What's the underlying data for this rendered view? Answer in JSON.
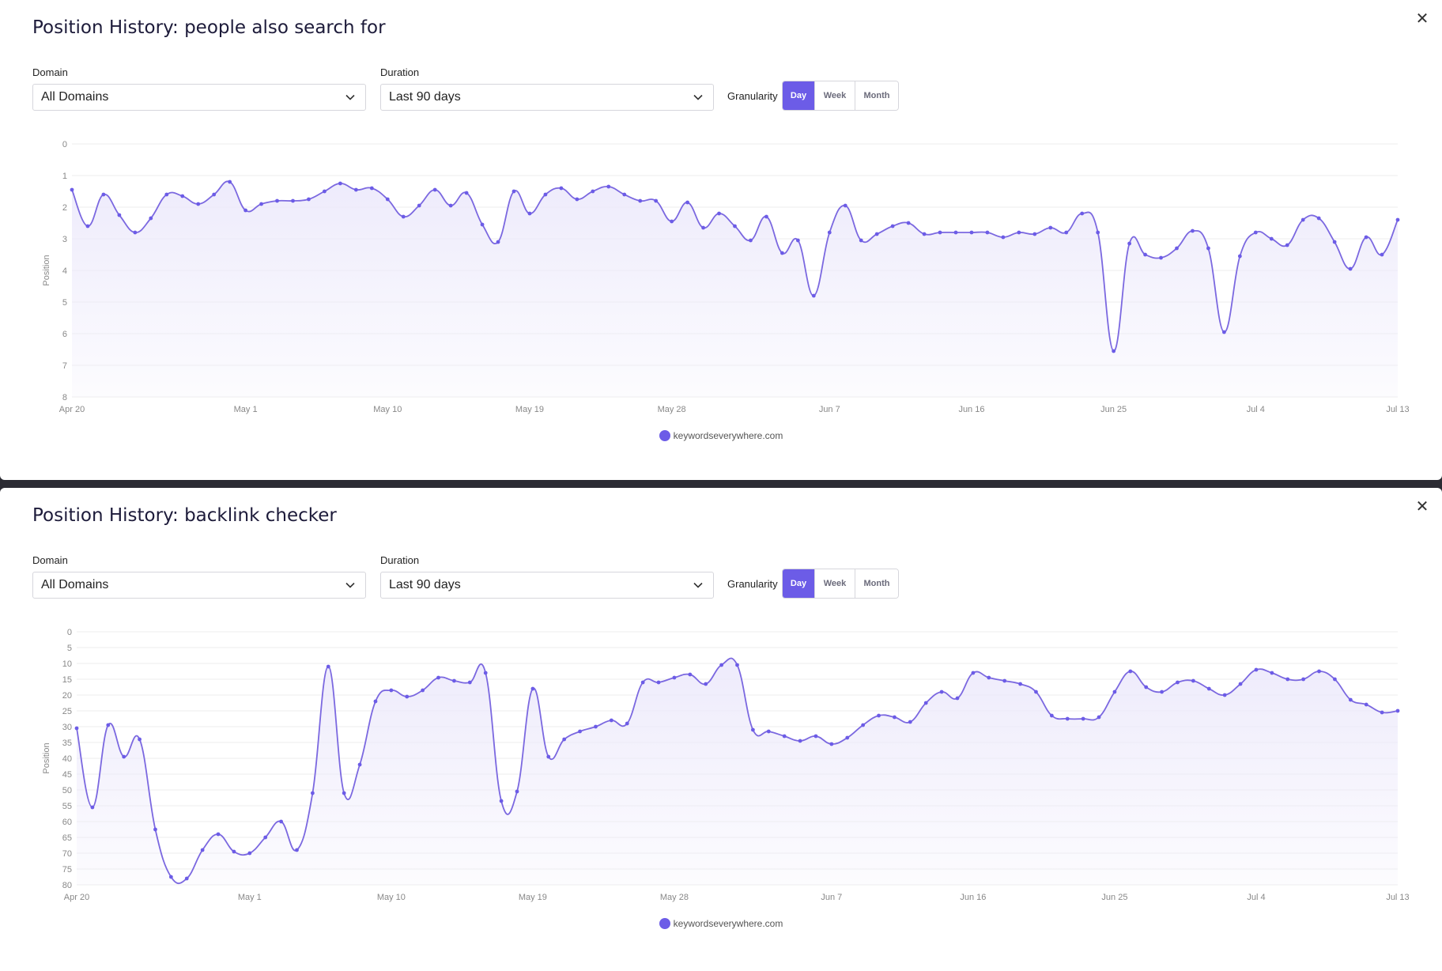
{
  "colors": {
    "accent": "#6c5ce7",
    "line": "#7b68e0",
    "fill": "#ece9fb",
    "grid": "#eeeeee"
  },
  "panels": [
    {
      "title": "Position History: people also search for",
      "close_icon": "close-icon",
      "domain_label": "Domain",
      "domain_value": "All Domains",
      "duration_label": "Duration",
      "duration_value": "Last 90 days",
      "granularity_label": "Granularity",
      "granularity_options": [
        "Day",
        "Week",
        "Month"
      ],
      "granularity_selected": "Day",
      "legend": "keywordseverywhere.com"
    },
    {
      "title": "Position History: backlink checker",
      "close_icon": "close-icon",
      "domain_label": "Domain",
      "domain_value": "All Domains",
      "duration_label": "Duration",
      "duration_value": "Last 90 days",
      "granularity_label": "Granularity",
      "granularity_options": [
        "Day",
        "Week",
        "Month"
      ],
      "granularity_selected": "Day",
      "legend": "keywordseverywhere.com"
    }
  ],
  "chart_data": [
    {
      "type": "area",
      "title": "",
      "xlabel": "",
      "ylabel": "Position",
      "y_reversed": true,
      "ylim": [
        0,
        8
      ],
      "yticks": [
        0,
        1,
        2,
        3,
        4,
        5,
        6,
        7,
        8
      ],
      "xticks": [
        "Apr 20",
        "May 1",
        "May 10",
        "May 19",
        "May 28",
        "Jun 7",
        "Jun 16",
        "Jun 25",
        "Jul 4",
        "Jul 13"
      ],
      "grid": true,
      "legend_position": "bottom",
      "series": [
        {
          "name": "keywordseverywhere.com",
          "values": [
            1.45,
            2.6,
            1.6,
            2.25,
            2.8,
            2.35,
            1.6,
            1.65,
            1.9,
            1.6,
            1.2,
            2.1,
            1.9,
            1.8,
            1.8,
            1.75,
            1.5,
            1.25,
            1.45,
            1.4,
            1.75,
            2.3,
            1.95,
            1.45,
            1.95,
            1.55,
            2.55,
            3.1,
            1.5,
            2.2,
            1.6,
            1.4,
            1.75,
            1.5,
            1.35,
            1.6,
            1.8,
            1.8,
            2.45,
            1.85,
            2.65,
            2.2,
            2.6,
            3.05,
            2.3,
            3.45,
            3.05,
            4.8,
            2.8,
            1.95,
            3.05,
            2.85,
            2.6,
            2.5,
            2.85,
            2.8,
            2.8,
            2.8,
            2.8,
            2.95,
            2.8,
            2.85,
            2.65,
            2.8,
            2.2,
            2.8,
            6.55,
            3.15,
            3.5,
            3.6,
            3.3,
            2.75,
            3.3,
            5.95,
            3.55,
            2.8,
            3.0,
            3.2,
            2.4,
            2.35,
            3.1,
            3.95,
            2.95,
            3.5,
            2.4
          ]
        }
      ]
    },
    {
      "type": "area",
      "title": "",
      "xlabel": "",
      "ylabel": "Position",
      "y_reversed": true,
      "ylim": [
        0,
        80
      ],
      "yticks": [
        0,
        5,
        10,
        15,
        20,
        25,
        30,
        35,
        40,
        45,
        50,
        55,
        60,
        65,
        70,
        75,
        80
      ],
      "xticks": [
        "Apr 20",
        "May 1",
        "May 10",
        "May 19",
        "May 28",
        "Jun 7",
        "Jun 16",
        "Jun 25",
        "Jul 4",
        "Jul 13"
      ],
      "grid": true,
      "legend_position": "bottom",
      "series": [
        {
          "name": "keywordseverywhere.com",
          "values": [
            30.5,
            55.5,
            29.5,
            39.5,
            34,
            62.5,
            77.5,
            78,
            69,
            64,
            69.5,
            70,
            65,
            60,
            69,
            51,
            11,
            51,
            42,
            22,
            18.5,
            20.5,
            18.5,
            14.5,
            15.5,
            16,
            13,
            53.5,
            50.5,
            18,
            39.5,
            34,
            31.5,
            30,
            28,
            29,
            16,
            16,
            14.5,
            13.5,
            16.5,
            10.5,
            10.5,
            31,
            31.5,
            33,
            34.5,
            33,
            35.5,
            33.5,
            29.5,
            26.5,
            27,
            28.5,
            22.5,
            19,
            21,
            13,
            14.5,
            15.5,
            16.5,
            19,
            26.5,
            27.5,
            27.5,
            27,
            19,
            12.5,
            17.5,
            19,
            16,
            15.5,
            18,
            20,
            16.5,
            12,
            13,
            15,
            15,
            12.5,
            15,
            21.5,
            23,
            25.5,
            25
          ]
        }
      ]
    }
  ]
}
